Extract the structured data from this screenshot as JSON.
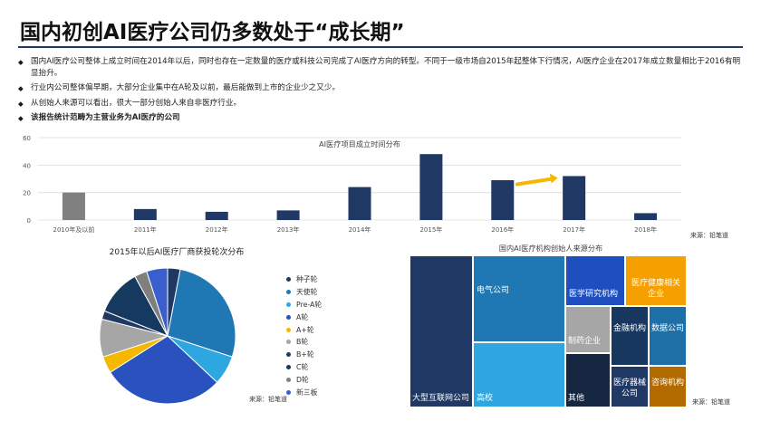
{
  "page_title": "国内初创AI医疗公司仍多数处于“成长期”",
  "bullets": [
    {
      "text": "国内AI医疗公司整体上成立时间在2014年以后，同时也存在一定数量的医疗或科技公司完成了AI医疗方向的转型。不同于一级市场自2015年起整体下行情况，AI医疗企业在2017年成立数量相比于2016有明显抬升。",
      "bold": false
    },
    {
      "text": "行业内公司整体偏早期，大部分企业集中在A轮及以前，最后能做到上市的企业少之又少。",
      "bold": false
    },
    {
      "text": "从创始人来源可以看出，很大一部分创始人来自非医疗行业。",
      "bold": false
    },
    {
      "text": "该报告统计范畴为主营业务为AI医疗的公司",
      "bold": true
    }
  ],
  "bullet_marker": "◆",
  "colors": {
    "navy": "#1f3864",
    "grey": "#808080",
    "arrow": "#f5b800",
    "rule": "#1f3864"
  },
  "chart_data": [
    {
      "type": "bar",
      "title": "AI医疗项目成立时间分布",
      "categories": [
        "2010年及以前",
        "2011年",
        "2012年",
        "2013年",
        "2014年",
        "2015年",
        "2016年",
        "2017年",
        "2018年"
      ],
      "values": [
        20,
        8,
        6,
        7,
        24,
        48,
        29,
        32,
        5
      ],
      "bar_colors": [
        "#808080",
        "#1f3864",
        "#1f3864",
        "#1f3864",
        "#1f3864",
        "#1f3864",
        "#1f3864",
        "#1f3864",
        "#1f3864"
      ],
      "ylim": [
        0,
        60
      ],
      "yticks": [
        0,
        20,
        40,
        60
      ],
      "grid": true,
      "source": "来源：铅笔道"
    },
    {
      "type": "pie",
      "title": "2015年以后AI医疗厂商获投轮次分布",
      "labels": [
        "种子轮",
        "天使轮",
        "Pre-A轮",
        "A轮",
        "A+轮",
        "B轮",
        "B+轮",
        "C轮",
        "D轮",
        "新三板"
      ],
      "values": [
        3,
        27,
        7,
        29,
        4,
        9,
        2,
        11,
        3,
        5
      ],
      "colors": [
        "#1f3864",
        "#1f77b4",
        "#2ea7e0",
        "#2a52be",
        "#f5b800",
        "#a6a6a6",
        "#1f3864",
        "#163a5f",
        "#7f7f7f",
        "#3a5fcd"
      ],
      "legend_position": "right",
      "source": "来源：铅笔道"
    },
    {
      "type": "treemap",
      "title": "国内AI医疗机构创始人来源分布",
      "items": [
        {
          "label": "大型互联网公司",
          "color": "#1f3864"
        },
        {
          "label": "电气公司",
          "color": "#1f77b4"
        },
        {
          "label": "高校",
          "color": "#2ea7e0"
        },
        {
          "label": "医学研究机构",
          "color": "#1f4fbf"
        },
        {
          "label": "医疗健康相关企业",
          "color": "#f5a000"
        },
        {
          "label": "制药企业",
          "color": "#a6a6a6"
        },
        {
          "label": "其他",
          "color": "#152641"
        },
        {
          "label": "金融机构",
          "color": "#17375e"
        },
        {
          "label": "数据公司",
          "color": "#1d6fa5"
        },
        {
          "label": "医疗器械公司",
          "color": "#1f3864"
        },
        {
          "label": "咨询机构",
          "color": "#b36b00"
        }
      ],
      "source": "来源：铅笔道"
    }
  ]
}
